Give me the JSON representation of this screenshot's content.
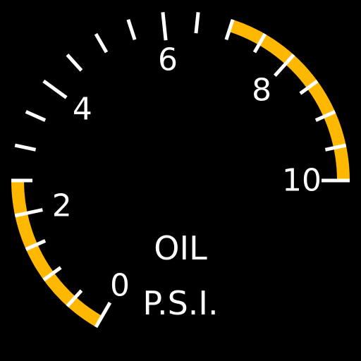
{
  "gauge": {
    "title": "OIL",
    "units": "P.S.I.",
    "scale": {
      "min": 0,
      "max": 10,
      "labels": [
        "0",
        "2",
        "4",
        "6",
        "8",
        "10"
      ],
      "label_values": [
        0,
        2,
        4,
        6,
        8,
        10
      ],
      "tick_step": 0.5
    },
    "caution_bands": [
      {
        "from": 0,
        "to": 2.5,
        "color": "#ffb800"
      },
      {
        "from": 7,
        "to": 10,
        "color": "#ffb800"
      }
    ],
    "colors": {
      "background": "#000000",
      "ticks": "#ffffff",
      "text": "#ffffff"
    }
  }
}
